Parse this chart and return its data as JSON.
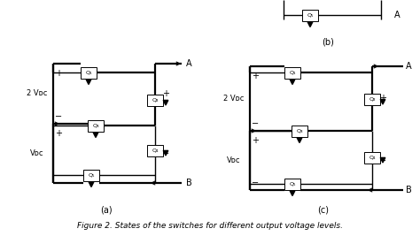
{
  "title": "Figure 2. States of the switches for different output voltage levels.",
  "title_fontsize": 6.5,
  "background_color": "#ffffff",
  "text_color": "#000000",
  "figsize": [
    4.74,
    2.67
  ],
  "dpi": 100,
  "caption_a": "(a)",
  "caption_b": "(b)",
  "caption_c": "(c)",
  "label_2Vdc_a": "2 Vᴅᴄ",
  "label_Vdc_a": "Vᴅᴄ",
  "label_2Vdc_c": "2 Vᴅᴄ",
  "label_Vdc_c": "Vᴅᴄ",
  "label_A_a": "A",
  "label_B_a": "B",
  "label_A_c": "A",
  "label_B_c": "B",
  "sw_a": [
    "Q₁",
    "Q₂",
    "Q₃",
    "Q₄",
    "Q₅"
  ],
  "sw_c": [
    "Q₁",
    "Q₂",
    "Q₃",
    "Q₄",
    "Q₅"
  ]
}
